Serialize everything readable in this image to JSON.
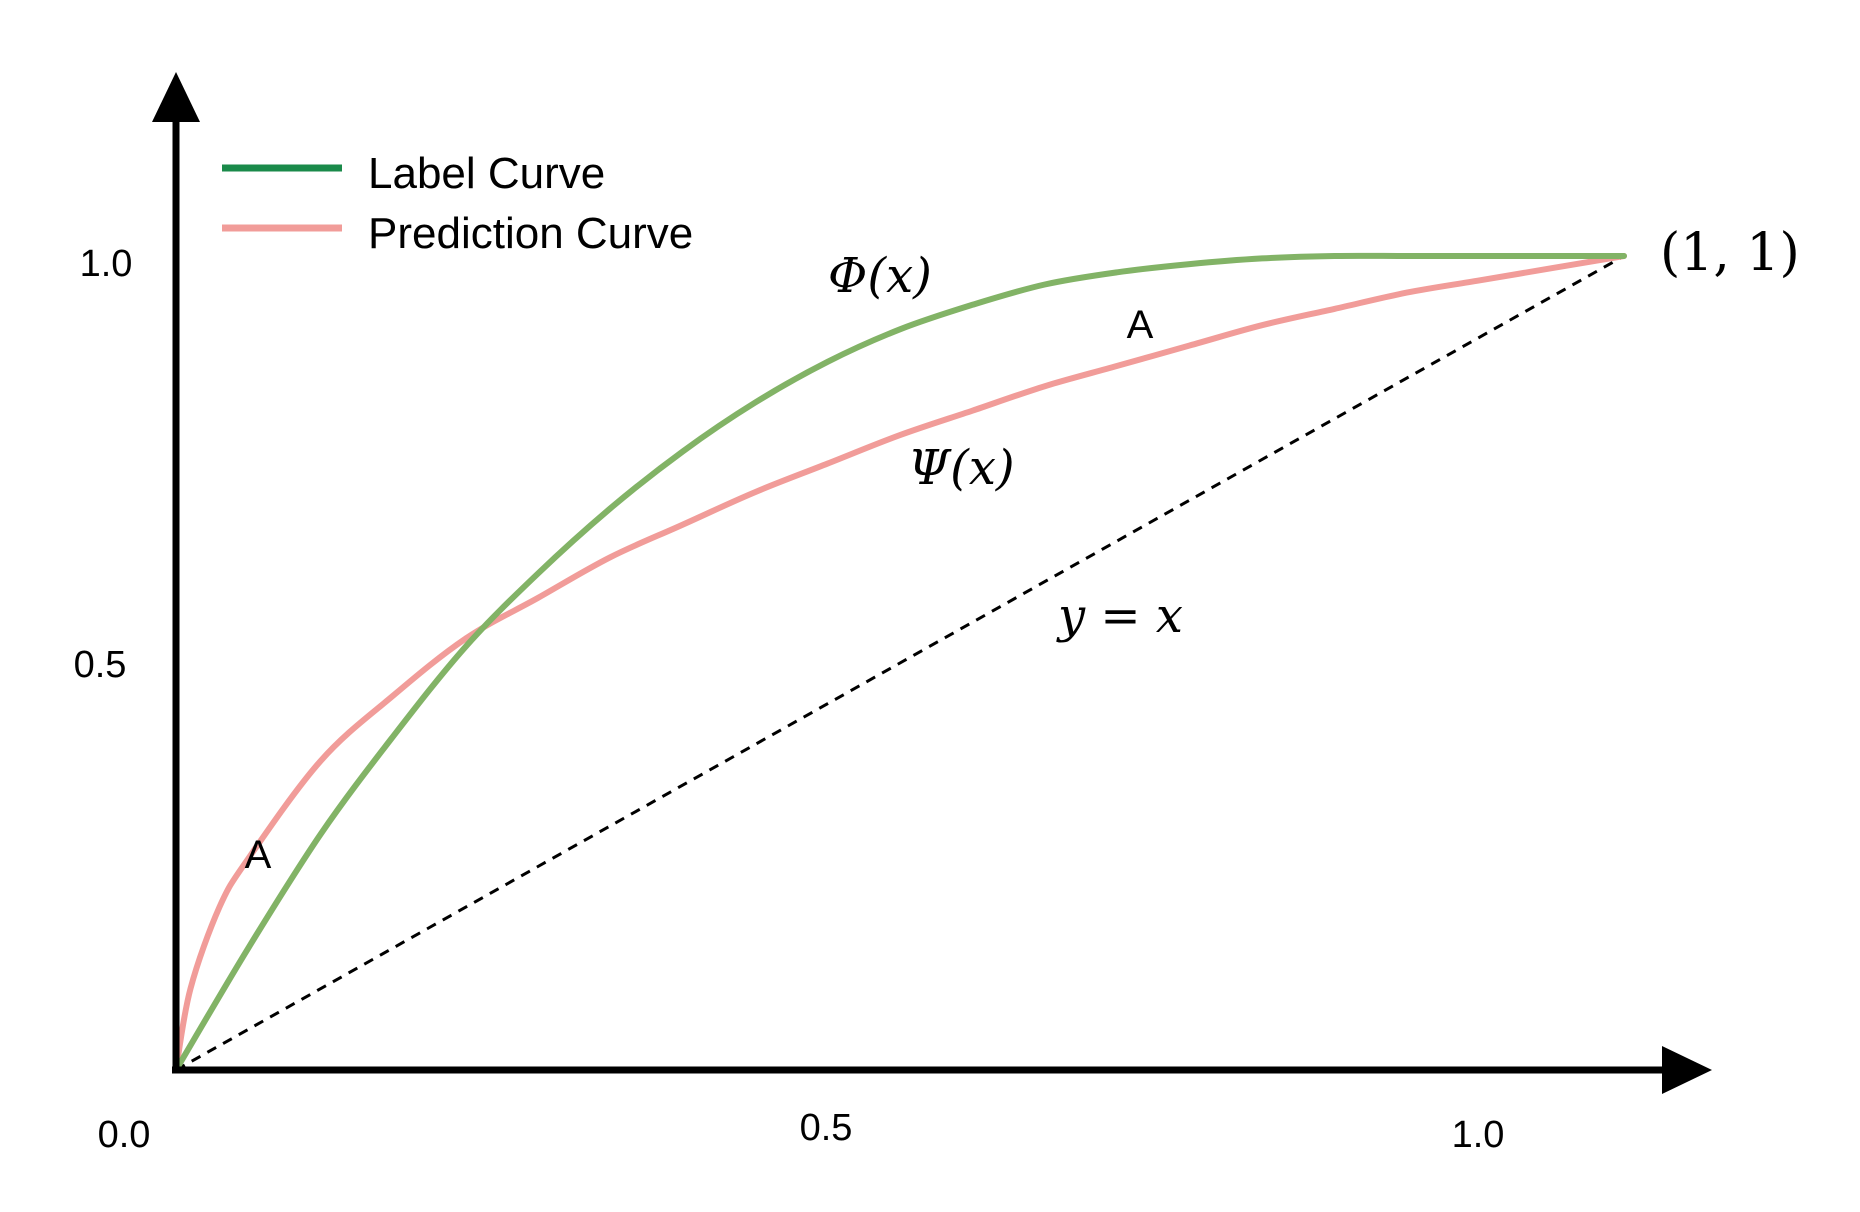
{
  "chart_data": {
    "type": "line",
    "xticks": [
      "0.0",
      "0.5",
      "1.0"
    ],
    "yticks": [
      "0.5",
      "1.0"
    ],
    "xlim": [
      0,
      1
    ],
    "ylim": [
      0,
      1
    ],
    "grid": false,
    "legend_position": "top-left",
    "series": [
      {
        "name": "Label Curve",
        "color": "#82b366",
        "x": [
          0,
          0.05,
          0.1,
          0.15,
          0.2,
          0.25,
          0.3,
          0.35,
          0.4,
          0.45,
          0.5,
          0.55,
          0.6,
          0.65,
          0.7,
          0.75,
          0.8,
          0.85,
          0.9,
          0.95,
          1.0
        ],
        "y": [
          0,
          0.15,
          0.29,
          0.41,
          0.52,
          0.61,
          0.69,
          0.76,
          0.82,
          0.87,
          0.91,
          0.94,
          0.965,
          0.98,
          0.99,
          0.997,
          1.0,
          1.0,
          1.0,
          1.0,
          1.0
        ]
      },
      {
        "name": "Prediction Curve",
        "color": "#f19c99",
        "x": [
          0,
          0.01,
          0.03,
          0.05,
          0.1,
          0.15,
          0.2,
          0.25,
          0.3,
          0.35,
          0.4,
          0.45,
          0.5,
          0.55,
          0.6,
          0.65,
          0.7,
          0.75,
          0.8,
          0.85,
          0.9,
          0.95,
          1.0
        ],
        "y": [
          0,
          0.1,
          0.2,
          0.26,
          0.38,
          0.46,
          0.53,
          0.58,
          0.63,
          0.67,
          0.71,
          0.745,
          0.78,
          0.81,
          0.84,
          0.865,
          0.89,
          0.915,
          0.935,
          0.955,
          0.97,
          0.985,
          1.0
        ]
      }
    ],
    "reference_line": {
      "x": [
        0,
        1
      ],
      "y": [
        0,
        1
      ],
      "style": "dashed",
      "color": "#000000"
    },
    "annotations": {
      "label_curve": "Φ(x)",
      "prediction_curve": "Ψ(x)",
      "diagonal": "y = x",
      "endpoint": "(1, 1)",
      "region_upper": "A",
      "region_lower": "A"
    }
  }
}
